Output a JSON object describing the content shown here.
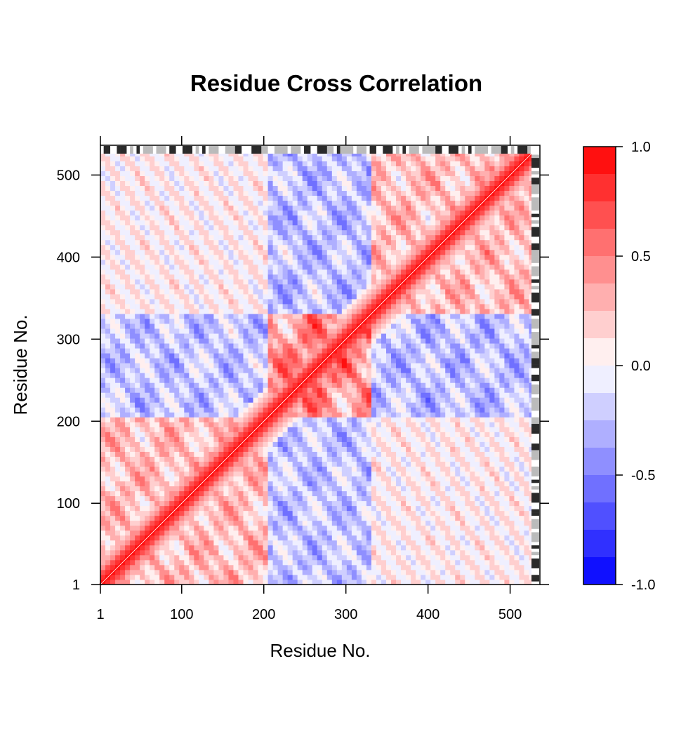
{
  "chart_data": {
    "type": "heatmap",
    "title": "Residue Cross Correlation",
    "xlabel": "Residue No.",
    "ylabel": "Residue No.",
    "xlim": [
      1,
      526
    ],
    "ylim": [
      1,
      526
    ],
    "x_ticks": [
      "1",
      "100",
      "200",
      "300",
      "400",
      "500"
    ],
    "y_ticks": [
      "1",
      "100",
      "200",
      "300",
      "400",
      "500"
    ],
    "colorbar": {
      "range": [
        -1.0,
        1.0
      ],
      "ticks": [
        "-1.0",
        "-0.5",
        "0.0",
        "0.5",
        "1.0"
      ],
      "low_color": "#0000ff",
      "mid_color": "#ffffff",
      "high_color": "#ff0000",
      "levels": 16
    },
    "diagonal_value": 1.0,
    "blocks": [
      {
        "x": [
          1,
          200
        ],
        "y": [
          1,
          200
        ],
        "value": 0.45
      },
      {
        "x": [
          200,
          330
        ],
        "y": [
          200,
          330
        ],
        "value": 0.75
      },
      {
        "x": [
          330,
          526
        ],
        "y": [
          330,
          526
        ],
        "value": 0.45
      },
      {
        "x": [
          1,
          200
        ],
        "y": [
          200,
          330
        ],
        "value": -0.4
      },
      {
        "x": [
          200,
          330
        ],
        "y": [
          1,
          200
        ],
        "value": -0.4
      },
      {
        "x": [
          200,
          330
        ],
        "y": [
          330,
          526
        ],
        "value": -0.45
      },
      {
        "x": [
          330,
          526
        ],
        "y": [
          200,
          330
        ],
        "value": -0.45
      },
      {
        "x": [
          1,
          200
        ],
        "y": [
          330,
          526
        ],
        "value": 0.1
      },
      {
        "x": [
          330,
          526
        ],
        "y": [
          1,
          200
        ],
        "value": 0.1
      }
    ],
    "grid": false,
    "legend": "right"
  }
}
